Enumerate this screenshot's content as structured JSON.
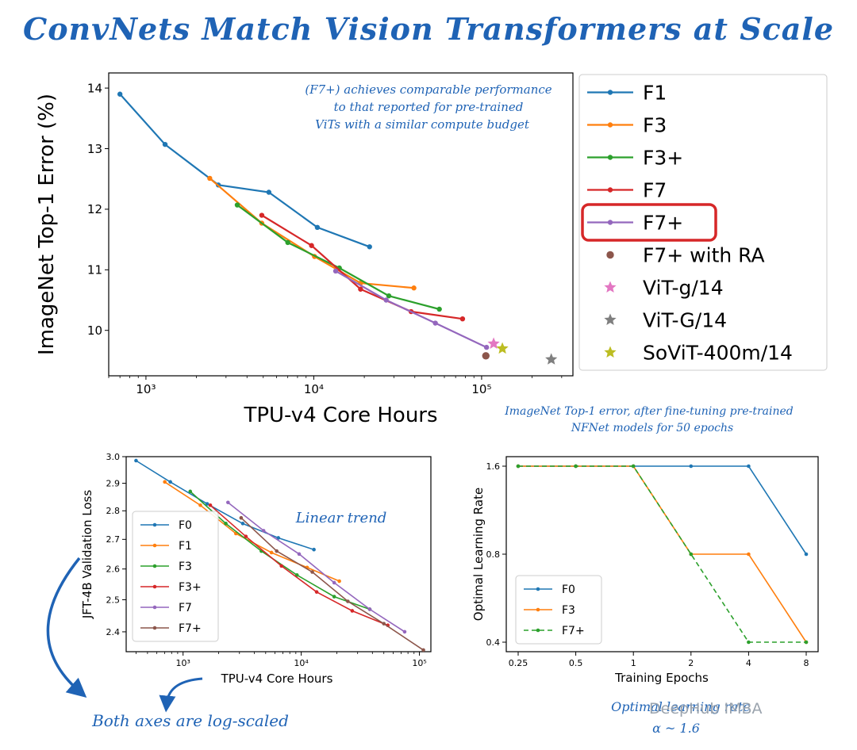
{
  "title": "ConvNets Match Vision Transformers at Scale",
  "watermark": "DeepHub IMBA",
  "colors": {
    "blue": "#1f77b4",
    "orange": "#ff7f0e",
    "green": "#2ca02c",
    "red": "#d62728",
    "purple": "#9467bd",
    "brown": "#8c564b",
    "pink": "#e377c2",
    "gray": "#7f7f7f",
    "olive": "#bcbd22",
    "accent": "#1f63b5",
    "highlight": "#d62728"
  },
  "annotations": {
    "top_note": [
      "(F7+) achieves comparable performance",
      "to that reported for pre-trained",
      "ViTs with a similar compute budget"
    ],
    "top_caption": [
      "ImageNet Top-1 error, after fine-tuning pre-trained",
      "NFNet models for 50 epochs"
    ],
    "linear_trend": "Linear trend",
    "log_axes": "Both axes are log-scaled",
    "optimal_lr": [
      "Optimal learning rate",
      "α ~ 1.6"
    ]
  },
  "chart_data": [
    {
      "type": "line",
      "xlabel": "TPU-v4 Core Hours",
      "ylabel": "ImageNet Top-1 Error (%)",
      "xscale": "log",
      "xlim": [
        600,
        350000
      ],
      "ylim": [
        9.25,
        14.25
      ],
      "xticks": [
        {
          "v": 1000,
          "label": "10³"
        },
        {
          "v": 10000,
          "label": "10⁴"
        },
        {
          "v": 100000,
          "label": "10⁵"
        }
      ],
      "yticks": [
        10,
        11,
        12,
        13,
        14
      ],
      "legend": "right",
      "highlighted_legend_entry": "F7+",
      "series": [
        {
          "name": "F1",
          "color": "blue",
          "marker": "line",
          "points": [
            [
              700,
              13.9
            ],
            [
              1300,
              13.07
            ],
            [
              2700,
              12.4
            ],
            [
              5400,
              12.28
            ],
            [
              10500,
              11.7
            ],
            [
              21500,
              11.38
            ]
          ]
        },
        {
          "name": "F3",
          "color": "orange",
          "marker": "line",
          "points": [
            [
              2400,
              12.51
            ],
            [
              4900,
              11.77
            ],
            [
              10100,
              11.22
            ],
            [
              19000,
              10.78
            ],
            [
              39500,
              10.7
            ]
          ]
        },
        {
          "name": "F3+",
          "color": "green",
          "marker": "line",
          "points": [
            [
              3500,
              12.07
            ],
            [
              7000,
              11.45
            ],
            [
              14200,
              11.03
            ],
            [
              28000,
              10.57
            ],
            [
              56000,
              10.35
            ]
          ]
        },
        {
          "name": "F7",
          "color": "red",
          "marker": "line",
          "points": [
            [
              4900,
              11.9
            ],
            [
              9700,
              11.4
            ],
            [
              19000,
              10.68
            ],
            [
              38000,
              10.31
            ],
            [
              77000,
              10.19
            ]
          ]
        },
        {
          "name": "F7+",
          "color": "purple",
          "marker": "line",
          "points": [
            [
              13500,
              10.98
            ],
            [
              27000,
              10.5
            ],
            [
              53000,
              10.12
            ],
            [
              107000,
              9.72
            ]
          ]
        },
        {
          "name": "F7+ with RA",
          "color": "brown",
          "marker": "dot",
          "points": [
            [
              106000,
              9.58
            ]
          ]
        },
        {
          "name": "ViT-g/14",
          "color": "pink",
          "marker": "star",
          "points": [
            [
              118000,
              9.78
            ]
          ]
        },
        {
          "name": "ViT-G/14",
          "color": "gray",
          "marker": "star",
          "points": [
            [
              260000,
              9.52
            ]
          ]
        },
        {
          "name": "SoViT-400m/14",
          "color": "olive",
          "marker": "star",
          "points": [
            [
              133000,
              9.7
            ]
          ]
        }
      ]
    },
    {
      "type": "line",
      "xlabel": "TPU-v4 Core Hours",
      "ylabel": "JFT-4B Validation Loss",
      "xscale": "log",
      "yscale": "log",
      "xlim": [
        330,
        125000
      ],
      "ylim": [
        2.34,
        3.0
      ],
      "xticks": [
        {
          "v": 1000,
          "label": "10³"
        },
        {
          "v": 10000,
          "label": "10⁴"
        },
        {
          "v": 100000,
          "label": "10⁵"
        }
      ],
      "yticks": [
        "2.4",
        "2.5",
        "2.6",
        "2.7",
        "2.8",
        "2.9",
        "3.0"
      ],
      "legend": "lower left",
      "series": [
        {
          "name": "F0",
          "color": "blue",
          "points": [
            [
              400,
              2.985
            ],
            [
              780,
              2.905
            ],
            [
              1600,
              2.825
            ],
            [
              3200,
              2.755
            ],
            [
              6400,
              2.705
            ],
            [
              12800,
              2.665
            ]
          ]
        },
        {
          "name": "F1",
          "color": "orange",
          "points": [
            [
              700,
              2.905
            ],
            [
              1400,
              2.82
            ],
            [
              2800,
              2.72
            ],
            [
              5600,
              2.655
            ],
            [
              11200,
              2.605
            ],
            [
              21000,
              2.56
            ]
          ]
        },
        {
          "name": "F3",
          "color": "green",
          "points": [
            [
              1150,
              2.87
            ],
            [
              2300,
              2.755
            ],
            [
              4600,
              2.66
            ],
            [
              9200,
              2.58
            ],
            [
              19000,
              2.51
            ],
            [
              38000,
              2.47
            ]
          ]
        },
        {
          "name": "F3+",
          "color": "red",
          "points": [
            [
              1700,
              2.82
            ],
            [
              3400,
              2.71
            ],
            [
              6800,
              2.61
            ],
            [
              13500,
              2.525
            ],
            [
              27000,
              2.465
            ],
            [
              54000,
              2.42
            ]
          ]
        },
        {
          "name": "F7",
          "color": "purple",
          "points": [
            [
              2400,
              2.83
            ],
            [
              4800,
              2.73
            ],
            [
              9600,
              2.65
            ],
            [
              19000,
              2.555
            ],
            [
              38000,
              2.47
            ],
            [
              75000,
              2.4
            ]
          ]
        },
        {
          "name": "F7+",
          "color": "brown",
          "points": [
            [
              3100,
              2.775
            ],
            [
              6200,
              2.66
            ],
            [
              12400,
              2.59
            ],
            [
              24800,
              2.495
            ],
            [
              50000,
              2.425
            ],
            [
              108000,
              2.345
            ]
          ]
        }
      ]
    },
    {
      "type": "line",
      "xlabel": "Training Epochs",
      "ylabel": "Optimal Learning Rate",
      "xscale": "log2",
      "yscale": "log2",
      "xlim": [
        0.25,
        8
      ],
      "ylim": [
        0.4,
        1.6
      ],
      "xticks": [
        "0.25",
        "0.5",
        "1",
        "2",
        "4",
        "8"
      ],
      "yticks": [
        "0.4",
        "0.8",
        "1.6"
      ],
      "legend": "lower left",
      "series": [
        {
          "name": "F0",
          "color": "blue",
          "style": "solid",
          "points": [
            [
              0.25,
              1.6
            ],
            [
              0.5,
              1.6
            ],
            [
              1,
              1.6
            ],
            [
              2,
              1.6
            ],
            [
              4,
              1.6
            ],
            [
              8,
              0.8
            ]
          ]
        },
        {
          "name": "F3",
          "color": "orange",
          "style": "solid",
          "points": [
            [
              0.25,
              1.6
            ],
            [
              0.5,
              1.6
            ],
            [
              1,
              1.6
            ],
            [
              2,
              0.8
            ],
            [
              4,
              0.8
            ],
            [
              8,
              0.4
            ]
          ]
        },
        {
          "name": "F7+",
          "color": "green",
          "style": "dashed",
          "points": [
            [
              0.25,
              1.6
            ],
            [
              0.5,
              1.6
            ],
            [
              1,
              1.6
            ],
            [
              2,
              0.8
            ],
            [
              4,
              0.4
            ],
            [
              8,
              0.4
            ]
          ]
        }
      ]
    }
  ]
}
